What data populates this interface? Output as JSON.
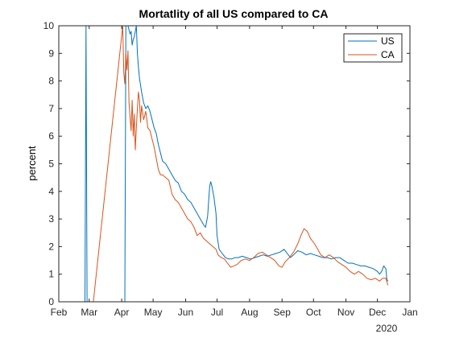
{
  "chart_data": {
    "type": "line",
    "title": "Mortatlity of all US compared to CA",
    "xlabel": "",
    "ylabel": "percent",
    "year_label": "2020",
    "ylim": [
      0,
      10
    ],
    "xlim": [
      "2020-02-01",
      "2021-01-01"
    ],
    "yticks": [
      0,
      1,
      2,
      3,
      4,
      5,
      6,
      7,
      8,
      9,
      10
    ],
    "xticks": [
      {
        "date": "2020-02-01",
        "label": "Feb"
      },
      {
        "date": "2020-03-01",
        "label": "Mar"
      },
      {
        "date": "2020-04-01",
        "label": "Apr"
      },
      {
        "date": "2020-05-01",
        "label": "May"
      },
      {
        "date": "2020-06-01",
        "label": "Jun"
      },
      {
        "date": "2020-07-01",
        "label": "Jul"
      },
      {
        "date": "2020-08-01",
        "label": "Aug"
      },
      {
        "date": "2020-09-01",
        "label": "Sep"
      },
      {
        "date": "2020-10-01",
        "label": "Oct"
      },
      {
        "date": "2020-11-01",
        "label": "Nov"
      },
      {
        "date": "2020-12-01",
        "label": "Dec"
      },
      {
        "date": "2021-01-01",
        "label": "Jan"
      }
    ],
    "grid": false,
    "legend_position": "top-right",
    "series": [
      {
        "name": "US",
        "color": "#0072BD",
        "points": [
          [
            "2020-02-01",
            0
          ],
          [
            "2020-02-26",
            0
          ],
          [
            "2020-02-27",
            10
          ],
          [
            "2020-02-28",
            0
          ],
          [
            "2020-03-01",
            0
          ],
          [
            "2020-03-05",
            0
          ],
          [
            "2020-03-10",
            0
          ],
          [
            "2020-03-15",
            0
          ],
          [
            "2020-03-20",
            0
          ],
          [
            "2020-03-25",
            0
          ],
          [
            "2020-03-30",
            0
          ],
          [
            "2020-04-04",
            0
          ],
          [
            "2020-04-05",
            10
          ],
          [
            "2020-04-07",
            10
          ],
          [
            "2020-04-09",
            9.7
          ],
          [
            "2020-04-10",
            9.8
          ],
          [
            "2020-04-11",
            9.3
          ],
          [
            "2020-04-12",
            9.5
          ],
          [
            "2020-04-13",
            9.6
          ],
          [
            "2020-04-14",
            9.8
          ],
          [
            "2020-04-15",
            10
          ],
          [
            "2020-04-16",
            9.0
          ],
          [
            "2020-04-17",
            8.5
          ],
          [
            "2020-04-18",
            8.1
          ],
          [
            "2020-04-20",
            7.6
          ],
          [
            "2020-04-22",
            7.2
          ],
          [
            "2020-04-24",
            7.0
          ],
          [
            "2020-04-26",
            7.1
          ],
          [
            "2020-04-28",
            6.9
          ],
          [
            "2020-04-30",
            6.6
          ],
          [
            "2020-05-02",
            6.3
          ],
          [
            "2020-05-04",
            6.1
          ],
          [
            "2020-05-06",
            5.7
          ],
          [
            "2020-05-08",
            5.4
          ],
          [
            "2020-05-10",
            5.1
          ],
          [
            "2020-05-13",
            5.0
          ],
          [
            "2020-05-16",
            4.8
          ],
          [
            "2020-05-19",
            4.6
          ],
          [
            "2020-05-22",
            4.4
          ],
          [
            "2020-05-25",
            4.3
          ],
          [
            "2020-05-28",
            4.0
          ],
          [
            "2020-05-31",
            3.9
          ],
          [
            "2020-06-03",
            3.7
          ],
          [
            "2020-06-06",
            3.6
          ],
          [
            "2020-06-09",
            3.4
          ],
          [
            "2020-06-12",
            3.2
          ],
          [
            "2020-06-15",
            3.0
          ],
          [
            "2020-06-18",
            2.8
          ],
          [
            "2020-06-20",
            2.7
          ],
          [
            "2020-06-22",
            3.1
          ],
          [
            "2020-06-24",
            4.2
          ],
          [
            "2020-06-25",
            4.35
          ],
          [
            "2020-06-26",
            4.2
          ],
          [
            "2020-06-28",
            3.8
          ],
          [
            "2020-06-30",
            3.2
          ],
          [
            "2020-07-01",
            2.4
          ],
          [
            "2020-07-03",
            1.9
          ],
          [
            "2020-07-06",
            1.75
          ],
          [
            "2020-07-09",
            1.6
          ],
          [
            "2020-07-12",
            1.55
          ],
          [
            "2020-07-15",
            1.55
          ],
          [
            "2020-07-18",
            1.6
          ],
          [
            "2020-07-21",
            1.6
          ],
          [
            "2020-07-25",
            1.65
          ],
          [
            "2020-07-29",
            1.6
          ],
          [
            "2020-08-02",
            1.55
          ],
          [
            "2020-08-06",
            1.6
          ],
          [
            "2020-08-10",
            1.65
          ],
          [
            "2020-08-14",
            1.7
          ],
          [
            "2020-08-18",
            1.65
          ],
          [
            "2020-08-22",
            1.7
          ],
          [
            "2020-08-26",
            1.75
          ],
          [
            "2020-08-30",
            1.8
          ],
          [
            "2020-09-03",
            1.9
          ],
          [
            "2020-09-06",
            1.75
          ],
          [
            "2020-09-09",
            1.6
          ],
          [
            "2020-09-12",
            1.7
          ],
          [
            "2020-09-16",
            1.85
          ],
          [
            "2020-09-20",
            1.8
          ],
          [
            "2020-09-24",
            1.7
          ],
          [
            "2020-09-28",
            1.75
          ],
          [
            "2020-10-02",
            1.7
          ],
          [
            "2020-10-06",
            1.65
          ],
          [
            "2020-10-10",
            1.6
          ],
          [
            "2020-10-14",
            1.6
          ],
          [
            "2020-10-18",
            1.55
          ],
          [
            "2020-10-22",
            1.6
          ],
          [
            "2020-10-26",
            1.6
          ],
          [
            "2020-10-30",
            1.5
          ],
          [
            "2020-11-03",
            1.4
          ],
          [
            "2020-11-07",
            1.4
          ],
          [
            "2020-11-11",
            1.35
          ],
          [
            "2020-11-15",
            1.3
          ],
          [
            "2020-11-19",
            1.3
          ],
          [
            "2020-11-23",
            1.25
          ],
          [
            "2020-11-27",
            1.2
          ],
          [
            "2020-12-01",
            1.1
          ],
          [
            "2020-12-03",
            1.0
          ],
          [
            "2020-12-05",
            1.1
          ],
          [
            "2020-12-07",
            1.3
          ],
          [
            "2020-12-09",
            1.2
          ],
          [
            "2020-12-10",
            0.8
          ],
          [
            "2020-12-11",
            0.75
          ]
        ]
      },
      {
        "name": "CA",
        "color": "#D95319",
        "points": [
          [
            "2020-02-01",
            0
          ],
          [
            "2020-02-10",
            0
          ],
          [
            "2020-02-20",
            0
          ],
          [
            "2020-03-01",
            0
          ],
          [
            "2020-03-05",
            0
          ],
          [
            "2020-04-02",
            10
          ],
          [
            "2020-04-03",
            8.3
          ],
          [
            "2020-04-04",
            7.9
          ],
          [
            "2020-04-05",
            9.0
          ],
          [
            "2020-04-06",
            8.4
          ],
          [
            "2020-04-07",
            9.1
          ],
          [
            "2020-04-08",
            7.2
          ],
          [
            "2020-04-09",
            6.7
          ],
          [
            "2020-04-10",
            6.2
          ],
          [
            "2020-04-11",
            7.3
          ],
          [
            "2020-04-12",
            6.0
          ],
          [
            "2020-04-13",
            6.8
          ],
          [
            "2020-04-14",
            5.5
          ],
          [
            "2020-04-15",
            6.3
          ],
          [
            "2020-04-16",
            7.0
          ],
          [
            "2020-04-17",
            7.6
          ],
          [
            "2020-04-18",
            7.3
          ],
          [
            "2020-04-19",
            6.5
          ],
          [
            "2020-04-20",
            7.1
          ],
          [
            "2020-04-22",
            6.6
          ],
          [
            "2020-04-24",
            6.9
          ],
          [
            "2020-04-26",
            6.3
          ],
          [
            "2020-04-28",
            6.2
          ],
          [
            "2020-04-30",
            5.9
          ],
          [
            "2020-05-02",
            5.6
          ],
          [
            "2020-05-04",
            5.2
          ],
          [
            "2020-05-06",
            4.8
          ],
          [
            "2020-05-08",
            4.6
          ],
          [
            "2020-05-10",
            4.6
          ],
          [
            "2020-05-13",
            4.5
          ],
          [
            "2020-05-16",
            4.4
          ],
          [
            "2020-05-19",
            3.9
          ],
          [
            "2020-05-22",
            3.7
          ],
          [
            "2020-05-25",
            3.6
          ],
          [
            "2020-05-28",
            3.4
          ],
          [
            "2020-05-31",
            3.2
          ],
          [
            "2020-06-03",
            3.0
          ],
          [
            "2020-06-06",
            2.9
          ],
          [
            "2020-06-09",
            2.7
          ],
          [
            "2020-06-12",
            2.4
          ],
          [
            "2020-06-15",
            2.5
          ],
          [
            "2020-06-18",
            2.3
          ],
          [
            "2020-06-21",
            2.2
          ],
          [
            "2020-06-24",
            2.1
          ],
          [
            "2020-06-27",
            2.0
          ],
          [
            "2020-06-30",
            1.9
          ],
          [
            "2020-07-02",
            1.7
          ],
          [
            "2020-07-05",
            1.6
          ],
          [
            "2020-07-08",
            1.55
          ],
          [
            "2020-07-11",
            1.4
          ],
          [
            "2020-07-14",
            1.25
          ],
          [
            "2020-07-17",
            1.3
          ],
          [
            "2020-07-20",
            1.35
          ],
          [
            "2020-07-24",
            1.5
          ],
          [
            "2020-07-28",
            1.55
          ],
          [
            "2020-08-01",
            1.5
          ],
          [
            "2020-08-05",
            1.6
          ],
          [
            "2020-08-09",
            1.75
          ],
          [
            "2020-08-13",
            1.8
          ],
          [
            "2020-08-17",
            1.7
          ],
          [
            "2020-08-21",
            1.6
          ],
          [
            "2020-08-25",
            1.5
          ],
          [
            "2020-08-29",
            1.3
          ],
          [
            "2020-09-01",
            1.25
          ],
          [
            "2020-09-04",
            1.45
          ],
          [
            "2020-09-08",
            1.6
          ],
          [
            "2020-09-12",
            1.8
          ],
          [
            "2020-09-16",
            2.1
          ],
          [
            "2020-09-19",
            2.4
          ],
          [
            "2020-09-22",
            2.65
          ],
          [
            "2020-09-25",
            2.55
          ],
          [
            "2020-09-28",
            2.3
          ],
          [
            "2020-10-02",
            2.1
          ],
          [
            "2020-10-05",
            1.9
          ],
          [
            "2020-10-08",
            1.7
          ],
          [
            "2020-10-12",
            1.6
          ],
          [
            "2020-10-16",
            1.7
          ],
          [
            "2020-10-20",
            1.6
          ],
          [
            "2020-10-24",
            1.45
          ],
          [
            "2020-10-28",
            1.35
          ],
          [
            "2020-11-01",
            1.25
          ],
          [
            "2020-11-05",
            1.1
          ],
          [
            "2020-11-09",
            1.0
          ],
          [
            "2020-11-13",
            1.1
          ],
          [
            "2020-11-17",
            1.0
          ],
          [
            "2020-11-21",
            0.85
          ],
          [
            "2020-11-25",
            0.8
          ],
          [
            "2020-11-29",
            0.85
          ],
          [
            "2020-12-03",
            0.75
          ],
          [
            "2020-12-06",
            0.85
          ],
          [
            "2020-12-09",
            0.85
          ],
          [
            "2020-12-11",
            0.6
          ]
        ]
      }
    ]
  }
}
